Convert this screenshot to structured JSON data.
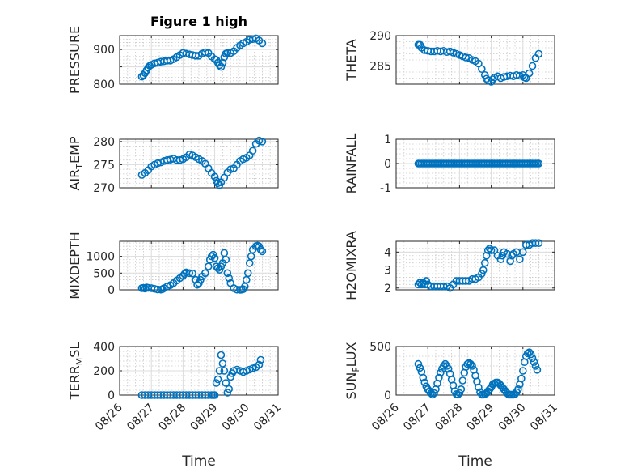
{
  "figure": {
    "title": "Figure 1 high",
    "marker_color": "#0072BD"
  },
  "x_ticks": [
    "08/26",
    "08/27",
    "08/28",
    "08/29",
    "08/30",
    "08/31"
  ],
  "chart_data": [
    {
      "type": "scatter",
      "title": "Figure 1 high",
      "xlabel": "",
      "ylabel": "PRESSURE",
      "ylabel_sub": "",
      "ylim": [
        800,
        940
      ],
      "yticks": [
        800,
        850,
        900
      ],
      "ytick_labels": [
        "800",
        "",
        "900"
      ],
      "x": [
        26.7,
        26.75,
        26.8,
        26.85,
        26.9,
        26.95,
        27.0,
        27.1,
        27.2,
        27.3,
        27.4,
        27.5,
        27.6,
        27.7,
        27.8,
        27.9,
        28.0,
        28.1,
        28.2,
        28.3,
        28.4,
        28.5,
        28.6,
        28.7,
        28.8,
        28.9,
        29.0,
        29.05,
        29.1,
        29.15,
        29.2,
        29.25,
        29.3,
        29.35,
        29.4,
        29.5,
        29.6,
        29.7,
        29.8,
        29.9,
        30.0,
        30.1,
        30.2,
        30.3,
        30.4,
        30.5
      ],
      "y": [
        822,
        826,
        832,
        840,
        848,
        853,
        856,
        860,
        862,
        865,
        866,
        868,
        868,
        872,
        878,
        884,
        890,
        888,
        886,
        884,
        882,
        882,
        888,
        892,
        890,
        880,
        872,
        870,
        862,
        855,
        850,
        862,
        878,
        888,
        890,
        890,
        895,
        905,
        912,
        918,
        922,
        928,
        930,
        932,
        926,
        918
      ]
    },
    {
      "type": "scatter",
      "title": "",
      "xlabel": "",
      "ylabel": "THETA",
      "ylabel_sub": "",
      "ylim": [
        282,
        290
      ],
      "yticks": [
        285,
        290
      ],
      "ytick_labels": [
        "285",
        "290"
      ],
      "x": [
        26.7,
        26.75,
        26.8,
        26.9,
        27.0,
        27.1,
        27.2,
        27.3,
        27.4,
        27.5,
        27.6,
        27.7,
        27.8,
        27.9,
        28.0,
        28.1,
        28.2,
        28.3,
        28.4,
        28.5,
        28.6,
        28.7,
        28.8,
        28.85,
        28.9,
        29.0,
        29.05,
        29.1,
        29.2,
        29.3,
        29.4,
        29.5,
        29.6,
        29.7,
        29.8,
        29.9,
        30.0,
        30.05,
        30.1,
        30.2,
        30.3,
        30.4,
        30.5
      ],
      "y": [
        288.5,
        288.5,
        288.0,
        287.6,
        287.5,
        287.4,
        287.4,
        287.5,
        287.4,
        287.5,
        287.3,
        287.4,
        287.2,
        287.0,
        286.8,
        286.6,
        286.4,
        286.3,
        286.0,
        285.8,
        285.4,
        284.5,
        283.5,
        282.9,
        282.6,
        282.4,
        282.8,
        283.1,
        283.3,
        283.0,
        283.2,
        283.3,
        283.4,
        283.3,
        283.5,
        283.4,
        283.5,
        283.1,
        283.0,
        283.8,
        285.0,
        286.3,
        287.0
      ]
    },
    {
      "type": "scatter",
      "title": "",
      "xlabel": "",
      "ylabel": "AIR",
      "ylabel_sub": "T",
      "ylabel_suffix": "EMP",
      "ylim": [
        270,
        280.5
      ],
      "yticks": [
        270,
        275,
        280
      ],
      "ytick_labels": [
        "270",
        "275",
        "280"
      ],
      "x": [
        26.7,
        26.8,
        26.9,
        27.0,
        27.1,
        27.2,
        27.3,
        27.4,
        27.5,
        27.6,
        27.7,
        27.8,
        27.9,
        28.0,
        28.1,
        28.2,
        28.3,
        28.4,
        28.5,
        28.6,
        28.7,
        28.8,
        28.9,
        29.0,
        29.05,
        29.1,
        29.15,
        29.2,
        29.3,
        29.4,
        29.5,
        29.6,
        29.7,
        29.8,
        29.9,
        30.0,
        30.1,
        30.2,
        30.3,
        30.4,
        30.5
      ],
      "y": [
        272.8,
        273.2,
        273.8,
        274.6,
        275.0,
        275.3,
        275.5,
        275.8,
        276.0,
        276.1,
        276.3,
        276.0,
        276.0,
        276.2,
        276.6,
        277.2,
        277.0,
        276.6,
        276.2,
        275.8,
        275.2,
        274.2,
        273.2,
        272.4,
        271.5,
        271.0,
        270.6,
        271.2,
        272.2,
        273.3,
        274.0,
        274.2,
        275.0,
        275.8,
        276.2,
        276.5,
        277.0,
        278.0,
        279.5,
        280.2,
        280.0
      ]
    },
    {
      "type": "scatter",
      "title": "",
      "xlabel": "",
      "ylabel": "RAINFALL",
      "ylabel_sub": "",
      "ylim": [
        -1,
        1
      ],
      "yticks": [
        -1,
        0,
        1
      ],
      "ytick_labels": [
        "-1",
        "0",
        "1"
      ],
      "x_range": [
        26.7,
        30.5
      ],
      "x_step": 0.05,
      "constant_y": 0
    },
    {
      "type": "scatter",
      "title": "",
      "xlabel": "",
      "ylabel": "MIXDEPTH",
      "ylabel_sub": "",
      "ylim": [
        0,
        1450
      ],
      "yticks": [
        0,
        500,
        1000
      ],
      "ytick_labels": [
        "0",
        "500",
        "1000"
      ],
      "x": [
        26.7,
        26.75,
        26.8,
        26.85,
        26.9,
        27.0,
        27.1,
        27.2,
        27.3,
        27.35,
        27.4,
        27.5,
        27.6,
        27.7,
        27.8,
        27.9,
        28.0,
        28.05,
        28.1,
        28.2,
        28.3,
        28.4,
        28.45,
        28.5,
        28.55,
        28.6,
        28.7,
        28.8,
        28.85,
        28.9,
        28.95,
        29.0,
        29.05,
        29.1,
        29.15,
        29.2,
        29.25,
        29.3,
        29.35,
        29.4,
        29.45,
        29.5,
        29.6,
        29.7,
        29.8,
        29.85,
        29.9,
        29.95,
        30.0,
        30.05,
        30.1,
        30.15,
        30.2,
        30.3,
        30.35,
        30.4,
        30.45,
        30.5
      ],
      "y": [
        50,
        60,
        40,
        70,
        60,
        50,
        30,
        10,
        5,
        20,
        50,
        100,
        140,
        200,
        280,
        350,
        420,
        480,
        520,
        500,
        490,
        300,
        150,
        200,
        300,
        400,
        500,
        700,
        900,
        1000,
        1050,
        950,
        700,
        650,
        600,
        700,
        800,
        1100,
        900,
        500,
        350,
        200,
        50,
        5,
        0,
        5,
        20,
        100,
        300,
        500,
        800,
        1000,
        1200,
        1300,
        1320,
        1300,
        1200,
        1150
      ]
    },
    {
      "type": "scatter",
      "title": "",
      "xlabel": "",
      "ylabel": "H2OMIXRA",
      "ylabel_sub": "",
      "ylim": [
        1.9,
        4.6
      ],
      "yticks": [
        2,
        3,
        4
      ],
      "ytick_labels": [
        "2",
        "3",
        "4"
      ],
      "x": [
        26.7,
        26.75,
        26.8,
        26.85,
        26.9,
        26.95,
        27.0,
        27.1,
        27.2,
        27.3,
        27.4,
        27.5,
        27.6,
        27.7,
        27.8,
        27.9,
        28.0,
        28.1,
        28.2,
        28.3,
        28.4,
        28.5,
        28.6,
        28.7,
        28.75,
        28.8,
        28.85,
        28.9,
        28.95,
        29.0,
        29.1,
        29.2,
        29.3,
        29.35,
        29.4,
        29.5,
        29.6,
        29.65,
        29.7,
        29.8,
        29.9,
        30.0,
        30.1,
        30.2,
        30.3,
        30.4,
        30.5
      ],
      "y": [
        2.2,
        2.3,
        2.2,
        2.3,
        2.2,
        2.4,
        2.2,
        2.1,
        2.1,
        2.1,
        2.1,
        2.1,
        2.1,
        2.0,
        2.2,
        2.4,
        2.4,
        2.4,
        2.4,
        2.4,
        2.5,
        2.5,
        2.6,
        2.8,
        3.0,
        3.4,
        3.8,
        4.1,
        4.2,
        4.1,
        4.1,
        3.8,
        3.6,
        3.8,
        4.0,
        3.9,
        3.5,
        3.8,
        3.9,
        4.0,
        3.6,
        4.0,
        4.4,
        4.4,
        4.5,
        4.5,
        4.5
      ]
    },
    {
      "type": "scatter",
      "title": "",
      "xlabel": "Time",
      "ylabel": "TERR",
      "ylabel_sub": "M",
      "ylabel_suffix": "SL",
      "ylim": [
        0,
        400
      ],
      "yticks": [
        0,
        200,
        400
      ],
      "ytick_labels": [
        "0",
        "200",
        "400"
      ],
      "x": [
        26.7,
        26.8,
        26.9,
        27.0,
        27.1,
        27.2,
        27.3,
        27.4,
        27.5,
        27.6,
        27.7,
        27.8,
        27.9,
        28.0,
        28.1,
        28.2,
        28.3,
        28.4,
        28.5,
        28.6,
        28.7,
        28.8,
        28.9,
        28.95,
        29.0,
        29.05,
        29.1,
        29.15,
        29.2,
        29.25,
        29.3,
        29.35,
        29.4,
        29.45,
        29.5,
        29.55,
        29.6,
        29.7,
        29.8,
        29.9,
        30.0,
        30.1,
        30.2,
        30.3,
        30.4,
        30.45
      ],
      "y": [
        0,
        0,
        0,
        0,
        0,
        0,
        0,
        0,
        0,
        0,
        0,
        0,
        0,
        0,
        0,
        0,
        0,
        0,
        0,
        0,
        0,
        0,
        0,
        0,
        0,
        100,
        130,
        200,
        330,
        260,
        200,
        100,
        20,
        50,
        150,
        180,
        200,
        210,
        200,
        190,
        200,
        210,
        220,
        230,
        250,
        290
      ]
    },
    {
      "type": "scatter",
      "title": "",
      "xlabel": "Time",
      "ylabel": "SUN",
      "ylabel_sub": "F",
      "ylabel_suffix": "LUX",
      "ylim": [
        0,
        500
      ],
      "yticks": [
        0,
        500
      ],
      "ytick_labels": [
        "0",
        "500"
      ],
      "x": [
        26.7,
        26.75,
        26.8,
        26.85,
        26.9,
        26.95,
        27.0,
        27.05,
        27.1,
        27.15,
        27.2,
        27.25,
        27.3,
        27.35,
        27.4,
        27.45,
        27.5,
        27.55,
        27.6,
        27.65,
        27.7,
        27.75,
        27.8,
        27.85,
        27.9,
        27.95,
        28.0,
        28.05,
        28.1,
        28.15,
        28.2,
        28.25,
        28.3,
        28.35,
        28.4,
        28.45,
        28.5,
        28.55,
        28.6,
        28.65,
        28.7,
        28.75,
        28.8,
        28.85,
        28.9,
        28.95,
        29.0,
        29.05,
        29.1,
        29.15,
        29.2,
        29.25,
        29.3,
        29.35,
        29.4,
        29.45,
        29.5,
        29.55,
        29.6,
        29.65,
        29.7,
        29.75,
        29.8,
        29.85,
        29.9,
        29.95,
        30.0,
        30.05,
        30.1,
        30.15,
        30.2,
        30.25,
        30.3,
        30.35,
        30.4,
        30.45
      ],
      "y": [
        320,
        280,
        240,
        180,
        130,
        90,
        60,
        40,
        20,
        5,
        20,
        60,
        120,
        180,
        230,
        270,
        300,
        320,
        300,
        270,
        220,
        160,
        100,
        40,
        10,
        5,
        20,
        60,
        150,
        230,
        290,
        320,
        330,
        320,
        300,
        260,
        200,
        140,
        80,
        30,
        5,
        5,
        10,
        20,
        40,
        60,
        80,
        110,
        120,
        130,
        130,
        120,
        100,
        80,
        60,
        40,
        20,
        5,
        5,
        5,
        5,
        10,
        30,
        60,
        110,
        170,
        250,
        340,
        400,
        430,
        440,
        420,
        380,
        340,
        300,
        260
      ]
    }
  ]
}
